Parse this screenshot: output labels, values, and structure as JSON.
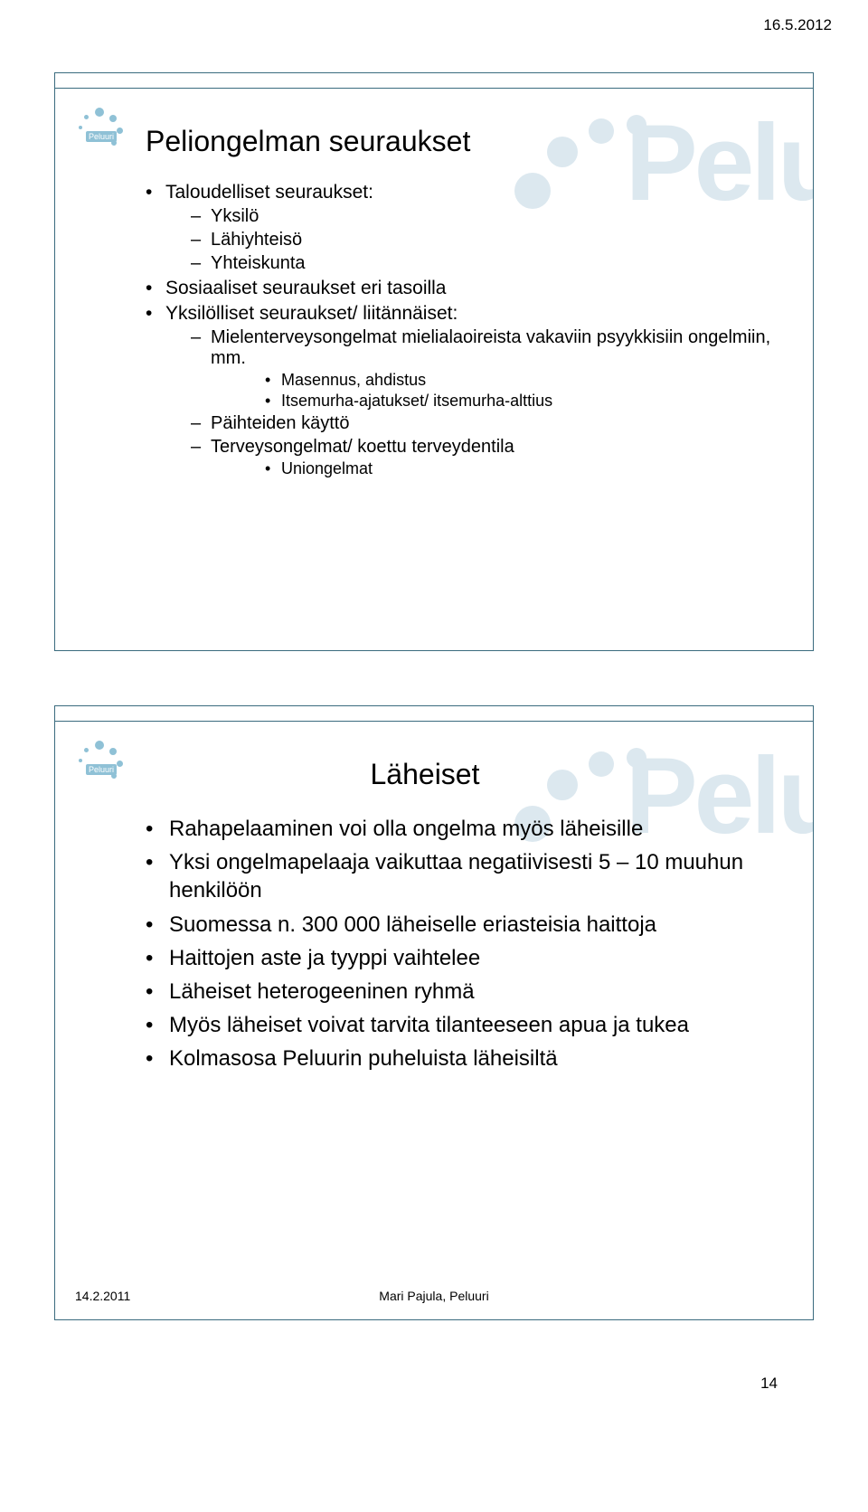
{
  "header": {
    "date": "16.5.2012"
  },
  "footer": {
    "page_number": "14"
  },
  "logo": {
    "label": "Peluuri"
  },
  "watermark": {
    "text": "Pelu"
  },
  "slide1": {
    "title": "Peliongelman seuraukset",
    "items": [
      {
        "text": "Taloudelliset seuraukset:",
        "children": [
          {
            "text": "Yksilö"
          },
          {
            "text": "Lähiyhteisö"
          },
          {
            "text": "Yhteiskunta"
          }
        ]
      },
      {
        "text": "Sosiaaliset seuraukset eri tasoilla"
      },
      {
        "text": "Yksilölliset seuraukset/ liitännäiset:",
        "children": [
          {
            "text": "Mielenterveysongelmat mielialaoireista vakaviin psyykkisiin ongelmiin, mm.",
            "children": [
              {
                "text": "Masennus, ahdistus"
              },
              {
                "text": "Itsemurha-ajatukset/ itsemurha-alttius"
              }
            ]
          },
          {
            "text": "Päihteiden käyttö"
          },
          {
            "text": "Terveysongelmat/ koettu terveydentila",
            "children": [
              {
                "text": "Uniongelmat"
              }
            ]
          }
        ]
      }
    ]
  },
  "slide2": {
    "title": "Läheiset",
    "items": [
      {
        "text": "Rahapelaaminen voi olla ongelma myös läheisille"
      },
      {
        "text": "Yksi ongelmapelaaja vaikuttaa negatiivisesti 5 – 10 muuhun henkilöön"
      },
      {
        "text": "Suomessa n. 300 000 läheiselle eriasteisia haittoja"
      },
      {
        "text": "Haittojen aste ja tyyppi vaihtelee"
      },
      {
        "text": "Läheiset heterogeeninen ryhmä"
      },
      {
        "text": "Myös läheiset voivat tarvita tilanteeseen apua ja tukea"
      },
      {
        "text": "Kolmasosa Peluurin puheluista läheisiltä"
      }
    ],
    "footer_left": "14.2.2011",
    "footer_center": "Mari Pajula, Peluuri"
  },
  "colors": {
    "border": "#3a6b7e",
    "logo": "#8fc1d6",
    "watermark": "#dce8ef",
    "text": "#000000",
    "background": "#ffffff"
  }
}
